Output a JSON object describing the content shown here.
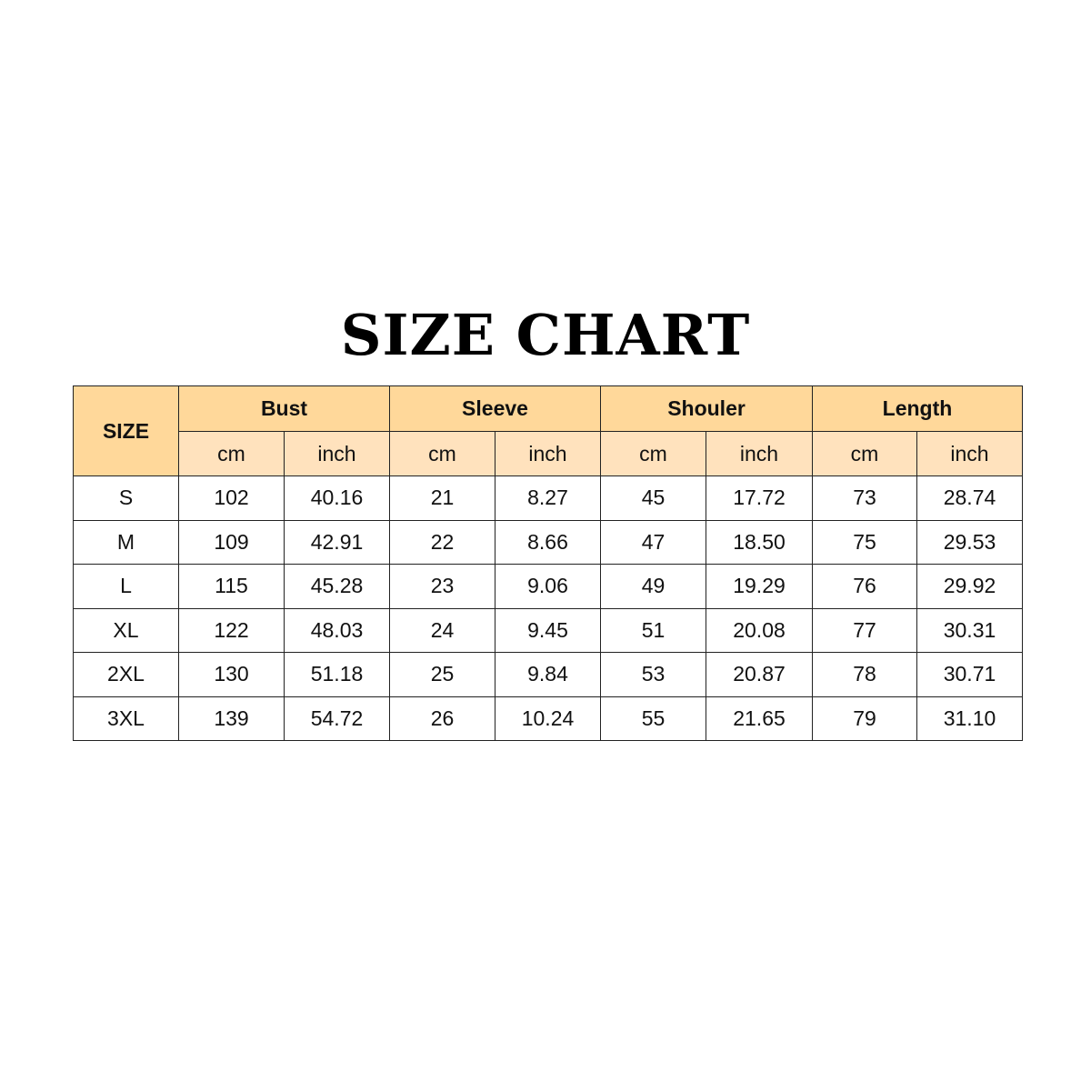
{
  "title": "SIZE CHART",
  "header": {
    "size_label": "SIZE",
    "groups": [
      "Bust",
      "Sleeve",
      "Shouler",
      "Length"
    ],
    "units": [
      "cm",
      "inch"
    ]
  },
  "colors": {
    "header": "#FFD89A",
    "subheader": "#FFE2BD",
    "border": "#222222"
  },
  "rows": [
    [
      "S",
      "102",
      "40.16",
      "21",
      "8.27",
      "45",
      "17.72",
      "73",
      "28.74"
    ],
    [
      "M",
      "109",
      "42.91",
      "22",
      "8.66",
      "47",
      "18.50",
      "75",
      "29.53"
    ],
    [
      "L",
      "115",
      "45.28",
      "23",
      "9.06",
      "49",
      "19.29",
      "76",
      "29.92"
    ],
    [
      "XL",
      "122",
      "48.03",
      "24",
      "9.45",
      "51",
      "20.08",
      "77",
      "30.31"
    ],
    [
      "2XL",
      "130",
      "51.18",
      "25",
      "9.84",
      "53",
      "20.87",
      "78",
      "30.71"
    ],
    [
      "3XL",
      "139",
      "54.72",
      "26",
      "10.24",
      "55",
      "21.65",
      "79",
      "31.10"
    ]
  ]
}
